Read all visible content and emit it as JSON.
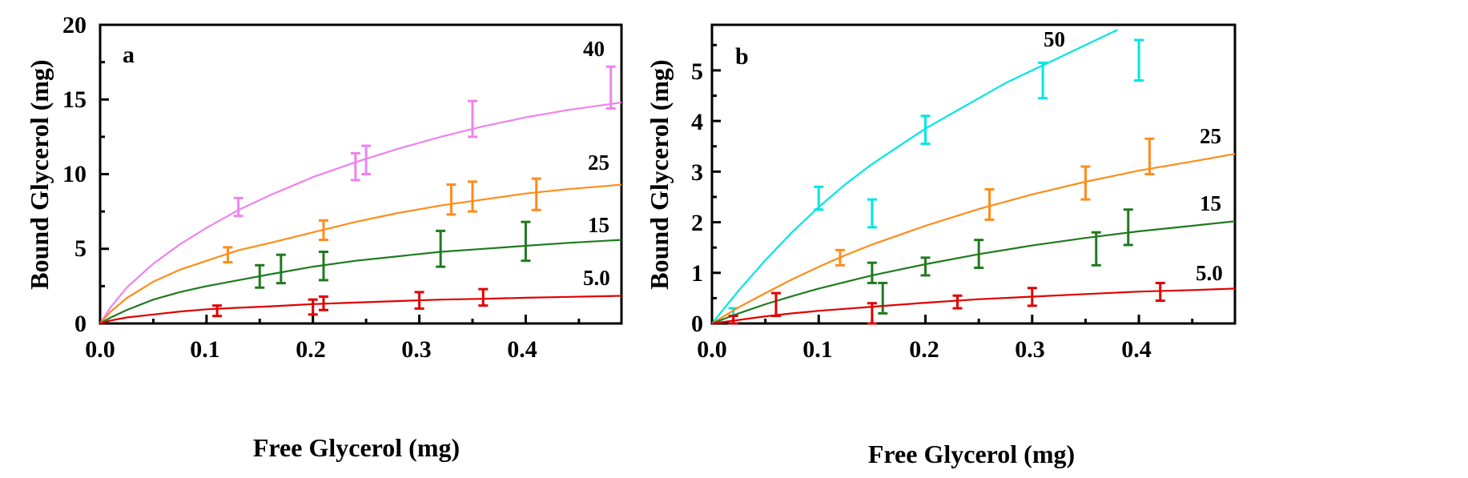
{
  "chart_data": [
    {
      "type": "line",
      "panel_label": "a",
      "xlabel": "Free Glycerol (mg)",
      "ylabel": "Bound Glycerol (mg)",
      "xlim": [
        0,
        0.49
      ],
      "ylim": [
        0,
        20
      ],
      "xticks": [
        0.0,
        0.1,
        0.2,
        0.3,
        0.4
      ],
      "xtick_labels": [
        "0.0",
        "0.1",
        "0.2",
        "0.3",
        "0.4"
      ],
      "yticks": [
        0,
        5,
        10,
        15,
        20
      ],
      "ytick_labels": [
        "0",
        "5",
        "10",
        "15",
        "20"
      ],
      "series": [
        {
          "name": "40",
          "color": "#ee82ee",
          "curve": {
            "x": [
              0,
              0.01,
              0.025,
              0.05,
              0.075,
              0.1,
              0.13,
              0.16,
              0.2,
              0.24,
              0.28,
              0.32,
              0.36,
              0.4,
              0.44,
              0.49
            ],
            "y": [
              0,
              1.1,
              2.4,
              4.0,
              5.3,
              6.4,
              7.6,
              8.6,
              9.8,
              10.8,
              11.7,
              12.5,
              13.2,
              13.8,
              14.3,
              14.8
            ]
          },
          "points": [
            {
              "x": 0.13,
              "low": 7.2,
              "high": 8.4
            },
            {
              "x": 0.24,
              "low": 9.6,
              "high": 11.4
            },
            {
              "x": 0.25,
              "low": 10.0,
              "high": 11.9
            },
            {
              "x": 0.35,
              "low": 12.5,
              "high": 14.9
            },
            {
              "x": 0.48,
              "low": 14.4,
              "high": 17.2
            }
          ]
        },
        {
          "name": "25",
          "color": "#ff8c1a",
          "curve": {
            "x": [
              0,
              0.01,
              0.025,
              0.05,
              0.075,
              0.1,
              0.13,
              0.16,
              0.2,
              0.24,
              0.28,
              0.32,
              0.36,
              0.4,
              0.44,
              0.49
            ],
            "y": [
              0,
              0.8,
              1.7,
              2.8,
              3.6,
              4.2,
              4.9,
              5.4,
              6.1,
              6.8,
              7.4,
              7.9,
              8.3,
              8.7,
              9.0,
              9.3
            ]
          },
          "points": [
            {
              "x": 0.12,
              "low": 4.1,
              "high": 5.1
            },
            {
              "x": 0.21,
              "low": 5.6,
              "high": 6.9
            },
            {
              "x": 0.33,
              "low": 7.3,
              "high": 9.3
            },
            {
              "x": 0.35,
              "low": 7.5,
              "high": 9.5
            },
            {
              "x": 0.41,
              "low": 7.6,
              "high": 9.7
            }
          ]
        },
        {
          "name": "15",
          "color": "#1f7a1f",
          "curve": {
            "x": [
              0,
              0.01,
              0.025,
              0.05,
              0.075,
              0.1,
              0.13,
              0.16,
              0.2,
              0.24,
              0.28,
              0.32,
              0.36,
              0.4,
              0.44,
              0.49
            ],
            "y": [
              0,
              0.4,
              0.9,
              1.6,
              2.1,
              2.5,
              2.9,
              3.3,
              3.8,
              4.2,
              4.5,
              4.8,
              5.0,
              5.2,
              5.4,
              5.6
            ]
          },
          "points": [
            {
              "x": 0.15,
              "low": 2.4,
              "high": 3.9
            },
            {
              "x": 0.17,
              "low": 2.7,
              "high": 4.6
            },
            {
              "x": 0.21,
              "low": 2.9,
              "high": 4.8
            },
            {
              "x": 0.32,
              "low": 3.8,
              "high": 6.2
            },
            {
              "x": 0.4,
              "low": 4.2,
              "high": 6.8
            }
          ]
        },
        {
          "name": "5.0",
          "color": "#e00000",
          "curve": {
            "x": [
              0,
              0.01,
              0.025,
              0.05,
              0.075,
              0.1,
              0.13,
              0.16,
              0.2,
              0.24,
              0.28,
              0.32,
              0.36,
              0.4,
              0.44,
              0.49
            ],
            "y": [
              0,
              0.2,
              0.4,
              0.6,
              0.8,
              0.95,
              1.05,
              1.15,
              1.3,
              1.4,
              1.5,
              1.6,
              1.65,
              1.72,
              1.78,
              1.85
            ]
          },
          "points": [
            {
              "x": 0.11,
              "low": 0.5,
              "high": 1.2
            },
            {
              "x": 0.2,
              "low": 0.6,
              "high": 1.6
            },
            {
              "x": 0.21,
              "low": 0.9,
              "high": 1.8
            },
            {
              "x": 0.3,
              "low": 1.0,
              "high": 2.1
            },
            {
              "x": 0.36,
              "low": 1.2,
              "high": 2.3
            }
          ]
        }
      ]
    },
    {
      "type": "line",
      "panel_label": "b",
      "xlabel": "Free Glycerol (mg)",
      "ylabel": "Bound Glycerol (mg)",
      "xlim": [
        0,
        0.49
      ],
      "ylim": [
        0,
        5.9
      ],
      "xticks": [
        0.0,
        0.1,
        0.2,
        0.3,
        0.4
      ],
      "xtick_labels": [
        "0.0",
        "0.1",
        "0.2",
        "0.3",
        "0.4"
      ],
      "yticks": [
        0,
        1,
        2,
        3,
        4,
        5
      ],
      "ytick_labels": [
        "0",
        "1",
        "2",
        "3",
        "4",
        "5"
      ],
      "series": [
        {
          "name": "50",
          "color": "#00e5e5",
          "curve": {
            "x": [
              0,
              0.025,
              0.05,
              0.075,
              0.1,
              0.125,
              0.15,
              0.175,
              0.2,
              0.225,
              0.25,
              0.275,
              0.3,
              0.325,
              0.35,
              0.38
            ],
            "y": [
              0,
              0.65,
              1.25,
              1.8,
              2.3,
              2.75,
              3.15,
              3.5,
              3.85,
              4.15,
              4.45,
              4.75,
              5.0,
              5.25,
              5.5,
              5.8
            ]
          },
          "points": [
            {
              "x": 0.02,
              "low": -0.05,
              "high": 0.3
            },
            {
              "x": 0.1,
              "low": 2.25,
              "high": 2.7
            },
            {
              "x": 0.15,
              "low": 1.9,
              "high": 2.45
            },
            {
              "x": 0.2,
              "low": 3.55,
              "high": 4.1
            },
            {
              "x": 0.31,
              "low": 4.45,
              "high": 5.15
            },
            {
              "x": 0.4,
              "low": 4.8,
              "high": 5.6
            }
          ]
        },
        {
          "name": "25",
          "color": "#ff8c1a",
          "curve": {
            "x": [
              0,
              0.025,
              0.05,
              0.075,
              0.1,
              0.125,
              0.15,
              0.2,
              0.25,
              0.3,
              0.35,
              0.4,
              0.45,
              0.49
            ],
            "y": [
              0,
              0.32,
              0.6,
              0.87,
              1.12,
              1.35,
              1.56,
              1.93,
              2.26,
              2.55,
              2.8,
              3.02,
              3.2,
              3.35
            ]
          },
          "points": [
            {
              "x": 0.12,
              "low": 1.15,
              "high": 1.45
            },
            {
              "x": 0.26,
              "low": 2.05,
              "high": 2.65
            },
            {
              "x": 0.35,
              "low": 2.45,
              "high": 3.1
            },
            {
              "x": 0.41,
              "low": 2.95,
              "high": 3.65
            }
          ]
        },
        {
          "name": "15",
          "color": "#1f7a1f",
          "curve": {
            "x": [
              0,
              0.025,
              0.05,
              0.075,
              0.1,
              0.125,
              0.15,
              0.2,
              0.25,
              0.3,
              0.35,
              0.4,
              0.45,
              0.49
            ],
            "y": [
              0,
              0.2,
              0.38,
              0.54,
              0.69,
              0.82,
              0.95,
              1.17,
              1.37,
              1.54,
              1.69,
              1.82,
              1.93,
              2.02
            ]
          },
          "points": [
            {
              "x": 0.15,
              "low": 0.8,
              "high": 1.2
            },
            {
              "x": 0.16,
              "low": 0.2,
              "high": 0.8
            },
            {
              "x": 0.2,
              "low": 0.95,
              "high": 1.3
            },
            {
              "x": 0.25,
              "low": 1.1,
              "high": 1.65
            },
            {
              "x": 0.36,
              "low": 1.15,
              "high": 1.8
            },
            {
              "x": 0.39,
              "low": 1.55,
              "high": 2.25
            }
          ]
        },
        {
          "name": "5.0",
          "color": "#e00000",
          "curve": {
            "x": [
              0,
              0.025,
              0.05,
              0.075,
              0.1,
              0.125,
              0.15,
              0.2,
              0.25,
              0.3,
              0.35,
              0.4,
              0.45,
              0.49
            ],
            "y": [
              0,
              0.07,
              0.14,
              0.2,
              0.25,
              0.29,
              0.33,
              0.41,
              0.48,
              0.53,
              0.58,
              0.63,
              0.66,
              0.69
            ]
          },
          "points": [
            {
              "x": 0.02,
              "low": 0.0,
              "high": 0.15
            },
            {
              "x": 0.06,
              "low": 0.15,
              "high": 0.6
            },
            {
              "x": 0.15,
              "low": 0.0,
              "high": 0.4
            },
            {
              "x": 0.23,
              "low": 0.3,
              "high": 0.55
            },
            {
              "x": 0.3,
              "low": 0.35,
              "high": 0.7
            },
            {
              "x": 0.42,
              "low": 0.45,
              "high": 0.8
            }
          ]
        }
      ]
    }
  ]
}
